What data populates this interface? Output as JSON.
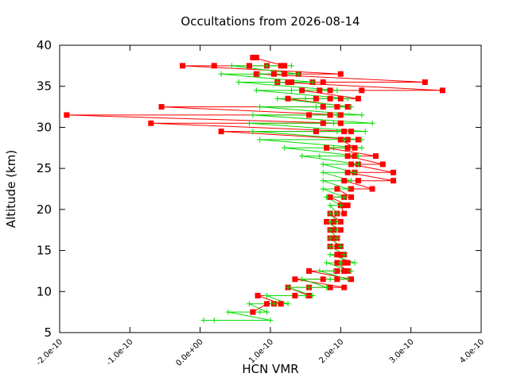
{
  "chart_data": {
    "type": "scatter",
    "title": "Occultations from 2026-08-14",
    "xlabel": "HCN VMR",
    "ylabel": "Altitude (km)",
    "xlim": [
      -2e-10,
      4e-10
    ],
    "ylim": [
      5,
      40
    ],
    "xticks": [
      -2e-10,
      -1e-10,
      0.0,
      1e-10,
      2e-10,
      3e-10,
      4e-10
    ],
    "xtick_labels": [
      "-2.0e-10",
      "-1.0e-10",
      "0.0e+00",
      "1.0e-10",
      "2.0e-10",
      "3.0e-10",
      "4.0e-10"
    ],
    "yticks": [
      5,
      10,
      15,
      20,
      25,
      30,
      35,
      40
    ],
    "ytick_labels": [
      "5",
      "10",
      "15",
      "20",
      "25",
      "30",
      "35",
      "40"
    ],
    "grid": false,
    "legend": "none",
    "series": [
      {
        "color": "#ff0000",
        "marker": "square",
        "points": [
          [
            7.5e-11,
            7.5
          ],
          [
            9.5e-11,
            8.5
          ],
          [
            1.05e-10,
            8.5
          ],
          [
            1.15e-10,
            8.5
          ],
          [
            1.35e-10,
            9.5
          ],
          [
            1.55e-10,
            9.5
          ],
          [
            8.2e-11,
            9.5
          ],
          [
            1.25e-10,
            10.5
          ],
          [
            1.55e-10,
            10.5
          ],
          [
            1.85e-10,
            10.5
          ],
          [
            2.05e-10,
            10.5
          ],
          [
            1.35e-10,
            11.5
          ],
          [
            1.75e-10,
            11.5
          ],
          [
            1.95e-10,
            11.5
          ],
          [
            2.15e-10,
            11.5
          ],
          [
            1.55e-10,
            12.5
          ],
          [
            1.95e-10,
            12.5
          ],
          [
            2.05e-10,
            12.5
          ],
          [
            2.1e-10,
            12.5
          ],
          [
            1.95e-10,
            13.5
          ],
          [
            2.05e-10,
            13.5
          ],
          [
            2.1e-10,
            13.5
          ],
          [
            1.95e-10,
            14.5
          ],
          [
            2e-10,
            14.5
          ],
          [
            2.05e-10,
            14.5
          ],
          [
            1.85e-10,
            15.5
          ],
          [
            1.95e-10,
            15.5
          ],
          [
            2e-10,
            15.5
          ],
          [
            1.85e-10,
            16.5
          ],
          [
            1.9e-10,
            16.5
          ],
          [
            1.95e-10,
            16.5
          ],
          [
            1.85e-10,
            17.5
          ],
          [
            1.9e-10,
            17.5
          ],
          [
            2e-10,
            17.5
          ],
          [
            1.8e-10,
            18.5
          ],
          [
            1.9e-10,
            18.5
          ],
          [
            2e-10,
            18.5
          ],
          [
            1.85e-10,
            19.5
          ],
          [
            1.95e-10,
            19.5
          ],
          [
            2.05e-10,
            19.5
          ],
          [
            2e-10,
            20.5
          ],
          [
            2.05e-10,
            20.5
          ],
          [
            2.1e-10,
            20.5
          ],
          [
            1.85e-10,
            21.5
          ],
          [
            2.05e-10,
            21.5
          ],
          [
            2.15e-10,
            21.5
          ],
          [
            1.95e-10,
            22.5
          ],
          [
            2.15e-10,
            22.5
          ],
          [
            2.45e-10,
            22.5
          ],
          [
            2.05e-10,
            23.5
          ],
          [
            2.25e-10,
            23.5
          ],
          [
            2.75e-10,
            23.5
          ],
          [
            2.1e-10,
            24.5
          ],
          [
            2.2e-10,
            24.5
          ],
          [
            2.75e-10,
            24.5
          ],
          [
            2.15e-10,
            25.5
          ],
          [
            2.25e-10,
            25.5
          ],
          [
            2.6e-10,
            25.5
          ],
          [
            2.1e-10,
            26.5
          ],
          [
            2.2e-10,
            26.5
          ],
          [
            2.5e-10,
            26.5
          ],
          [
            1.8e-10,
            27.5
          ],
          [
            2.1e-10,
            27.5
          ],
          [
            2.2e-10,
            27.5
          ],
          [
            2e-10,
            28.5
          ],
          [
            2.1e-10,
            28.5
          ],
          [
            2.25e-10,
            28.5
          ],
          [
            3e-11,
            29.5
          ],
          [
            1.65e-10,
            29.5
          ],
          [
            2.05e-10,
            29.5
          ],
          [
            2.15e-10,
            29.5
          ],
          [
            -7e-11,
            30.5
          ],
          [
            1.75e-10,
            30.5
          ],
          [
            2e-10,
            30.5
          ],
          [
            -1.9e-10,
            31.5
          ],
          [
            1.55e-10,
            31.5
          ],
          [
            1.85e-10,
            31.5
          ],
          [
            2e-10,
            31.5
          ],
          [
            -5.5e-11,
            32.5
          ],
          [
            1.75e-10,
            32.5
          ],
          [
            1.95e-10,
            32.5
          ],
          [
            2.1e-10,
            32.5
          ],
          [
            1.25e-10,
            33.5
          ],
          [
            1.65e-10,
            33.5
          ],
          [
            1.85e-10,
            33.5
          ],
          [
            2e-10,
            33.5
          ],
          [
            2.25e-10,
            33.5
          ],
          [
            1.45e-10,
            34.5
          ],
          [
            1.7e-10,
            34.5
          ],
          [
            1.85e-10,
            34.5
          ],
          [
            2.3e-10,
            34.5
          ],
          [
            3.45e-10,
            34.5
          ],
          [
            1.1e-10,
            35.5
          ],
          [
            1.25e-10,
            35.5
          ],
          [
            1.3e-10,
            35.5
          ],
          [
            1.6e-10,
            35.5
          ],
          [
            1.75e-10,
            35.5
          ],
          [
            3.2e-10,
            35.5
          ],
          [
            8e-11,
            36.5
          ],
          [
            1.05e-10,
            36.5
          ],
          [
            1.2e-10,
            36.5
          ],
          [
            1.4e-10,
            36.5
          ],
          [
            2e-10,
            36.5
          ],
          [
            -2.5e-11,
            37.5
          ],
          [
            2e-11,
            37.5
          ],
          [
            7e-11,
            37.5
          ],
          [
            9.5e-11,
            37.5
          ],
          [
            1.15e-10,
            37.5
          ],
          [
            1.2e-10,
            37.5
          ],
          [
            7.5e-11,
            38.5
          ],
          [
            8e-11,
            38.5
          ]
        ]
      },
      {
        "color": "#00dd00",
        "marker": "plus",
        "points": [
          [
            5e-12,
            6.5
          ],
          [
            2e-11,
            6.5
          ],
          [
            1e-10,
            6.5
          ],
          [
            4e-11,
            7.5
          ],
          [
            8.5e-11,
            7.5
          ],
          [
            9.5e-11,
            7.5
          ],
          [
            7e-11,
            8.5
          ],
          [
            1.05e-10,
            8.5
          ],
          [
            1.25e-10,
            8.5
          ],
          [
            9.5e-11,
            9.5
          ],
          [
            1.5e-10,
            9.5
          ],
          [
            1.6e-10,
            9.5
          ],
          [
            1.25e-10,
            10.5
          ],
          [
            1.55e-10,
            10.5
          ],
          [
            1.8e-10,
            10.5
          ],
          [
            1.45e-10,
            11.5
          ],
          [
            1.85e-10,
            11.5
          ],
          [
            2.1e-10,
            11.5
          ],
          [
            1.7e-10,
            12.5
          ],
          [
            1.9e-10,
            12.5
          ],
          [
            2.15e-10,
            12.5
          ],
          [
            1.8e-10,
            13.5
          ],
          [
            2e-10,
            13.5
          ],
          [
            2.2e-10,
            13.5
          ],
          [
            1.85e-10,
            14.5
          ],
          [
            2.05e-10,
            14.5
          ],
          [
            1.85e-10,
            15.5
          ],
          [
            2e-10,
            15.5
          ],
          [
            1.85e-10,
            16.5
          ],
          [
            1.95e-10,
            16.5
          ],
          [
            1.85e-10,
            17.5
          ],
          [
            1.95e-10,
            17.5
          ],
          [
            1.85e-10,
            18.5
          ],
          [
            1.95e-10,
            18.5
          ],
          [
            1.85e-10,
            19.5
          ],
          [
            1.95e-10,
            19.5
          ],
          [
            1.85e-10,
            20.5
          ],
          [
            2e-10,
            20.5
          ],
          [
            1.8e-10,
            21.5
          ],
          [
            2.05e-10,
            21.5
          ],
          [
            1.75e-10,
            22.5
          ],
          [
            2.1e-10,
            22.5
          ],
          [
            1.75e-10,
            23.5
          ],
          [
            2.15e-10,
            23.5
          ],
          [
            1.75e-10,
            24.5
          ],
          [
            2.2e-10,
            24.5
          ],
          [
            1.75e-10,
            25.5
          ],
          [
            2.25e-10,
            25.5
          ],
          [
            1.45e-10,
            26.5
          ],
          [
            1.7e-10,
            26.5
          ],
          [
            2.25e-10,
            26.5
          ],
          [
            1.2e-10,
            27.5
          ],
          [
            1.9e-10,
            27.5
          ],
          [
            2.3e-10,
            27.5
          ],
          [
            8.5e-11,
            28.5
          ],
          [
            2.05e-10,
            28.5
          ],
          [
            2.3e-10,
            28.5
          ],
          [
            7.5e-11,
            29.5
          ],
          [
            1.95e-10,
            29.5
          ],
          [
            2.35e-10,
            29.5
          ],
          [
            7e-11,
            30.5
          ],
          [
            1.9e-10,
            30.5
          ],
          [
            2.45e-10,
            30.5
          ],
          [
            7.5e-11,
            31.5
          ],
          [
            1.95e-10,
            31.5
          ],
          [
            2.3e-10,
            31.5
          ],
          [
            8.5e-11,
            32.5
          ],
          [
            1.65e-10,
            32.5
          ],
          [
            2.15e-10,
            32.5
          ],
          [
            1.1e-10,
            33.5
          ],
          [
            1.5e-10,
            33.5
          ],
          [
            2.1e-10,
            33.5
          ],
          [
            8e-11,
            34.5
          ],
          [
            1.3e-10,
            34.5
          ],
          [
            1.95e-10,
            34.5
          ],
          [
            5.5e-11,
            35.5
          ],
          [
            1.1e-10,
            35.5
          ],
          [
            1.6e-10,
            35.5
          ],
          [
            3e-11,
            36.5
          ],
          [
            8.5e-11,
            36.5
          ],
          [
            1.4e-10,
            36.5
          ],
          [
            4.5e-11,
            37.5
          ],
          [
            9.5e-11,
            37.5
          ],
          [
            1.3e-10,
            37.5
          ]
        ]
      }
    ]
  }
}
